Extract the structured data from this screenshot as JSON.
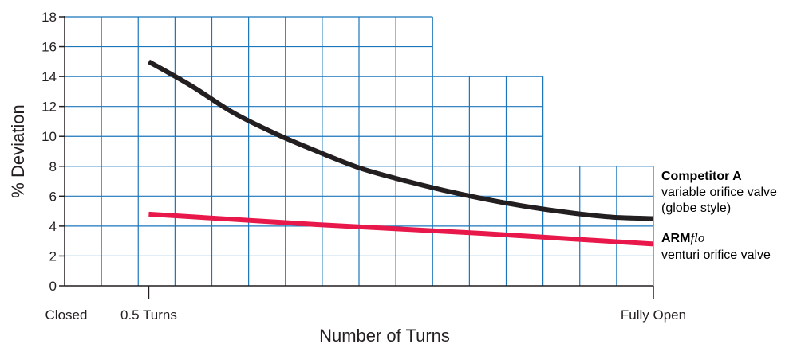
{
  "chart_data": {
    "type": "line",
    "title": "",
    "xlabel": "Number of Turns",
    "ylabel": "% Deviation",
    "ylim": [
      0,
      18
    ],
    "yticks": [
      "0",
      "2",
      "4",
      "6",
      "8",
      "10",
      "12",
      "14",
      "16",
      "18"
    ],
    "xlim": [
      0,
      7
    ],
    "xticks": [
      {
        "x": 0,
        "label": "Closed"
      },
      {
        "x": 1,
        "label": "0.5 Turns"
      },
      {
        "x": 7,
        "label": "Fully Open"
      }
    ],
    "grid": true,
    "legend_placement": "right",
    "series": [
      {
        "name": "Competitor A",
        "bold": "Competitor A",
        "lines": [
          "variable orifice valve",
          "(globe style)"
        ],
        "color": "#231f20",
        "x": [
          1,
          1.5,
          2,
          2.5,
          3,
          3.5,
          4,
          4.5,
          5,
          5.5,
          6,
          6.5,
          7
        ],
        "y": [
          15.0,
          13.4,
          11.6,
          10.2,
          9.0,
          7.9,
          7.1,
          6.4,
          5.8,
          5.3,
          4.9,
          4.6,
          4.5
        ]
      },
      {
        "name": "ARMflo",
        "bold": "ARM",
        "italic": "flo",
        "lines": [
          "venturi orifice valve"
        ],
        "color": "#e8194a",
        "x": [
          1,
          2,
          3,
          4,
          5,
          6,
          7
        ],
        "y": [
          4.8,
          4.45,
          4.1,
          3.8,
          3.5,
          3.15,
          2.8
        ]
      }
    ],
    "colors": {
      "grid": "#1b75bb",
      "axis": "#231f20"
    }
  }
}
